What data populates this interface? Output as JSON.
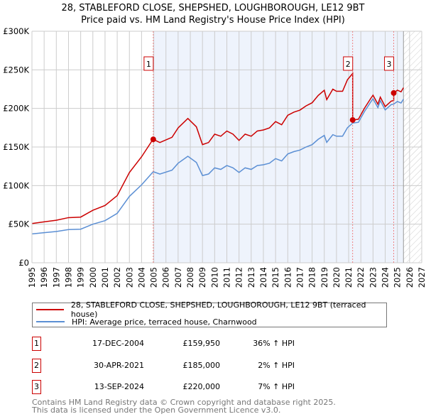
{
  "title": "28, STABLEFORD CLOSE, SHEPSHED, LOUGHBOROUGH, LE12 9BT",
  "subtitle": "Price paid vs. HM Land Registry's House Price Index (HPI)",
  "chart_data": {
    "type": "line",
    "xlim": [
      1995,
      2027
    ],
    "ylim": [
      0,
      300000
    ],
    "yticks": [
      {
        "v": 0,
        "label": "£0"
      },
      {
        "v": 50000,
        "label": "£50K"
      },
      {
        "v": 100000,
        "label": "£100K"
      },
      {
        "v": 150000,
        "label": "£150K"
      },
      {
        "v": 200000,
        "label": "£200K"
      },
      {
        "v": 250000,
        "label": "£250K"
      },
      {
        "v": 300000,
        "label": "£300K"
      }
    ],
    "xticks": [
      "1995",
      "1996",
      "1997",
      "1998",
      "1999",
      "2000",
      "2001",
      "2002",
      "2003",
      "2004",
      "2005",
      "2006",
      "2007",
      "2008",
      "2009",
      "2010",
      "2011",
      "2012",
      "2013",
      "2014",
      "2015",
      "2016",
      "2017",
      "2018",
      "2019",
      "2020",
      "2021",
      "2022",
      "2023",
      "2024",
      "2025",
      "2026",
      "2027"
    ],
    "shaded_from": 2004.96,
    "forecast_from": 2025.5,
    "hpi": {
      "name": "HPI: Average price, terraced house, Charnwood",
      "color": "#5b8fd4",
      "x": [
        1995,
        1996,
        1997,
        1998,
        1999,
        2000,
        2001,
        2002,
        2003,
        2004,
        2004.96,
        2005.5,
        2006.5,
        2007,
        2007.8,
        2008.5,
        2009,
        2009.5,
        2010,
        2010.5,
        2011,
        2011.5,
        2012,
        2012.5,
        2013,
        2013.5,
        2014,
        2014.5,
        2015,
        2015.5,
        2016,
        2016.5,
        2017,
        2017.5,
        2018,
        2018.5,
        2019,
        2019.2,
        2019.7,
        2020,
        2020.5,
        2020.9,
        2021.33,
        2021.8,
        2022.3,
        2022.8,
        2023,
        2023.4,
        2023.6,
        2024,
        2024.5,
        2024.7,
        2025,
        2025.3,
        2025.5
      ],
      "y": [
        37400,
        39000,
        40500,
        43000,
        43500,
        50000,
        54600,
        64000,
        86000,
        101000,
        118000,
        115000,
        120000,
        129000,
        138000,
        130000,
        113000,
        115000,
        123000,
        121000,
        126000,
        123000,
        117000,
        123000,
        121000,
        126000,
        127000,
        129000,
        135000,
        132000,
        141000,
        144000,
        146000,
        150000,
        153000,
        160000,
        165000,
        156000,
        166000,
        164000,
        164000,
        175000,
        181000,
        182000,
        196000,
        208000,
        212500,
        201000,
        210000,
        198000,
        205000,
        205600,
        209000,
        207000,
        212000
      ]
    },
    "property": {
      "name": "28, STABLEFORD CLOSE, SHEPSHED, LOUGHBOROUGH, LE12 9BT (terraced house)",
      "color": "#cc0000",
      "ratios": [
        {
          "from": 1995,
          "r": 1.36
        },
        {
          "from": 2004.96,
          "r": 1.355
        },
        {
          "from": 2021.33,
          "r": 1.022
        },
        {
          "from": 2024.7,
          "r": 1.07
        }
      ]
    },
    "sales": [
      {
        "n": "1",
        "x": 2004.96,
        "date": "17-DEC-2004",
        "price": 159950,
        "price_label": "£159,950",
        "hpi": "36% ↑ HPI"
      },
      {
        "n": "2",
        "x": 2021.33,
        "date": "30-APR-2021",
        "price": 185000,
        "price_label": "£185,000",
        "hpi": "2% ↑ HPI"
      },
      {
        "n": "3",
        "x": 2024.7,
        "date": "13-SEP-2024",
        "price": 220000,
        "price_label": "£220,000",
        "hpi": "7% ↑ HPI"
      }
    ]
  },
  "legend": {
    "property": "28, STABLEFORD CLOSE, SHEPSHED, LOUGHBOROUGH, LE12 9BT (terraced house)",
    "hpi": "HPI: Average price, terraced house, Charnwood"
  },
  "footer": {
    "line1": "Contains HM Land Registry data © Crown copyright and database right 2025.",
    "line2": "This data is licensed under the Open Government Licence v3.0."
  }
}
